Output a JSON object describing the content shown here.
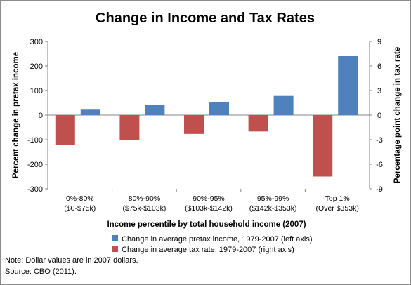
{
  "chart_data": {
    "type": "bar",
    "title": "Change in Income and Tax Rates",
    "xlabel": "Income percentile by total household income (2007)",
    "ylabel_left": "Percent change in pretax income",
    "ylabel_right": "Percentage point change in tax rate",
    "categories": [
      [
        "0%-80%",
        "($0-$75k)"
      ],
      [
        "80%-90%",
        "($75k-$103k)"
      ],
      [
        "90%-95%",
        "($103k-$142k)"
      ],
      [
        "95%-99%",
        "($142k-$353k)"
      ],
      [
        "Top 1%",
        "(Over $353k)"
      ]
    ],
    "ylim_left": [
      -300,
      300
    ],
    "yticks_left": [
      "300",
      "200",
      "100",
      "0",
      "-100",
      "-200",
      "-300"
    ],
    "ylim_right": [
      -9,
      9
    ],
    "yticks_right": [
      "9",
      "6",
      "3",
      "0",
      "-3",
      "-6",
      "-9"
    ],
    "series": [
      {
        "name": "Change in average pretax income, 1979-2007  (left axis)",
        "axis": "left",
        "color": "#4f81bd",
        "values": [
          25,
          40,
          53,
          78,
          240
        ]
      },
      {
        "name": "Change in average tax rate, 1979-2007  (right axis)",
        "axis": "right",
        "color": "#c0504d",
        "values": [
          -3.6,
          -3.0,
          -2.3,
          -2.0,
          -7.5
        ]
      }
    ],
    "legend_position": "bottom",
    "grid": false
  },
  "notes": [
    "Note: Dollar values are in 2007 dollars.",
    "Source: CBO (2011)."
  ]
}
